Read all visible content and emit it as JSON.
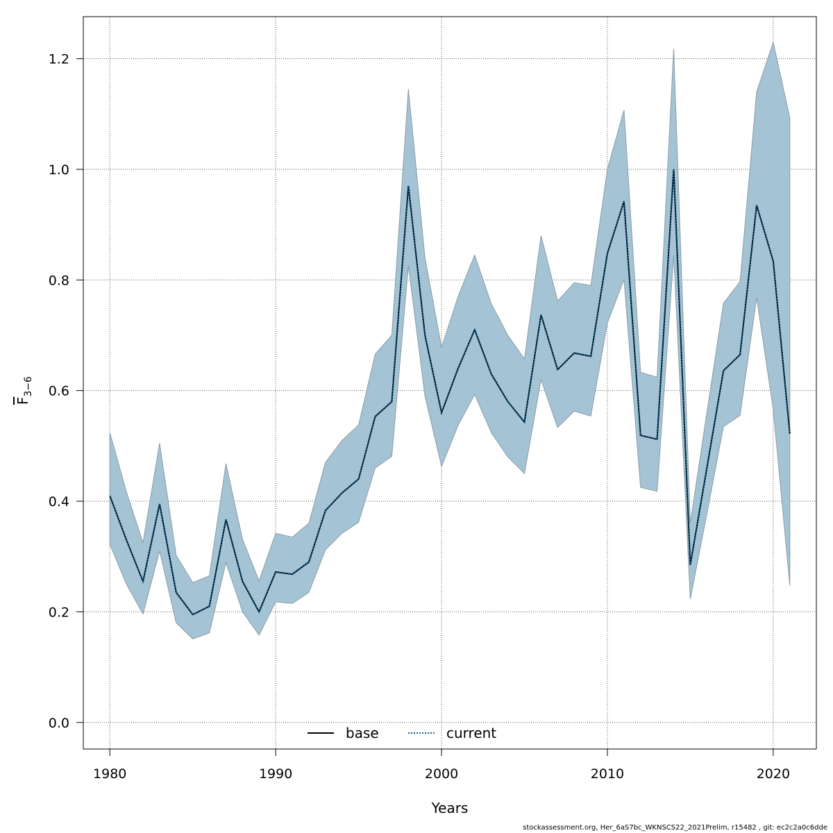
{
  "chart_data": {
    "type": "area",
    "xlabel": "Years",
    "ylabel_main": "F",
    "ylabel_sub": "3−6",
    "xlim": [
      1978.4,
      2022.6
    ],
    "ylim": [
      -0.048,
      1.276
    ],
    "x_ticks": [
      1980,
      1990,
      2000,
      2010,
      2020
    ],
    "y_ticks": [
      0.0,
      0.2,
      0.4,
      0.6,
      0.8,
      1.0,
      1.2
    ],
    "y_tick_labels": [
      "0.0",
      "0.2",
      "0.4",
      "0.6",
      "0.8",
      "1.0",
      "1.2"
    ],
    "grid": true,
    "legend_position": "bottom-center",
    "colors": {
      "band": "#a4c4d6",
      "band_edge": "#8a9aa4",
      "current_line": "#0b5f8f",
      "base_line": "#000000"
    },
    "x": [
      1980,
      1981,
      1982,
      1983,
      1984,
      1985,
      1986,
      1987,
      1988,
      1989,
      1990,
      1991,
      1992,
      1993,
      1994,
      1995,
      1996,
      1997,
      1998,
      1999,
      2000,
      2001,
      2002,
      2003,
      2004,
      2005,
      2006,
      2007,
      2008,
      2009,
      2010,
      2011,
      2012,
      2013,
      2014,
      2015,
      2016,
      2017,
      2018,
      2019,
      2020,
      2021
    ],
    "series": [
      {
        "name": "base",
        "style": "solid",
        "values": [
          0.41,
          0.33,
          0.255,
          0.395,
          0.235,
          0.195,
          0.21,
          0.367,
          0.255,
          0.2,
          0.272,
          0.268,
          0.29,
          0.383,
          0.415,
          0.44,
          0.553,
          0.58,
          0.97,
          0.7,
          0.56,
          0.64,
          0.71,
          0.63,
          0.58,
          0.543,
          0.737,
          0.638,
          0.668,
          0.662,
          0.848,
          0.942,
          0.519,
          0.512,
          1.0,
          0.285,
          0.46,
          0.636,
          0.665,
          0.935,
          0.834,
          0.522
        ]
      },
      {
        "name": "current",
        "style": "dotted",
        "values": [
          0.41,
          0.33,
          0.255,
          0.395,
          0.235,
          0.195,
          0.21,
          0.367,
          0.255,
          0.2,
          0.272,
          0.268,
          0.29,
          0.383,
          0.415,
          0.44,
          0.553,
          0.58,
          0.97,
          0.7,
          0.56,
          0.64,
          0.71,
          0.63,
          0.58,
          0.543,
          0.737,
          0.638,
          0.668,
          0.662,
          0.848,
          0.942,
          0.519,
          0.512,
          1.0,
          0.285,
          0.46,
          0.636,
          0.665,
          0.935,
          0.834,
          0.522
        ]
      }
    ],
    "band_lower": [
      0.322,
      0.25,
      0.196,
      0.31,
      0.18,
      0.151,
      0.162,
      0.289,
      0.2,
      0.158,
      0.218,
      0.215,
      0.235,
      0.312,
      0.342,
      0.362,
      0.46,
      0.481,
      0.826,
      0.59,
      0.463,
      0.537,
      0.593,
      0.524,
      0.48,
      0.45,
      0.62,
      0.533,
      0.563,
      0.554,
      0.722,
      0.801,
      0.425,
      0.418,
      0.845,
      0.223,
      0.377,
      0.535,
      0.555,
      0.768,
      0.566,
      0.248
    ],
    "band_upper": [
      0.524,
      0.417,
      0.325,
      0.505,
      0.302,
      0.253,
      0.265,
      0.468,
      0.331,
      0.256,
      0.342,
      0.335,
      0.36,
      0.47,
      0.51,
      0.538,
      0.666,
      0.7,
      1.145,
      0.84,
      0.678,
      0.77,
      0.845,
      0.757,
      0.7,
      0.657,
      0.88,
      0.762,
      0.795,
      0.79,
      1.0,
      1.107,
      0.633,
      0.624,
      1.218,
      0.36,
      0.56,
      0.758,
      0.797,
      1.14,
      1.23,
      1.093
    ]
  },
  "footer": "stockassessment.org, Her_6aS7bc_WKNSCS22_2021Prelim, r15482 , git: ec2c2a0c6dde"
}
